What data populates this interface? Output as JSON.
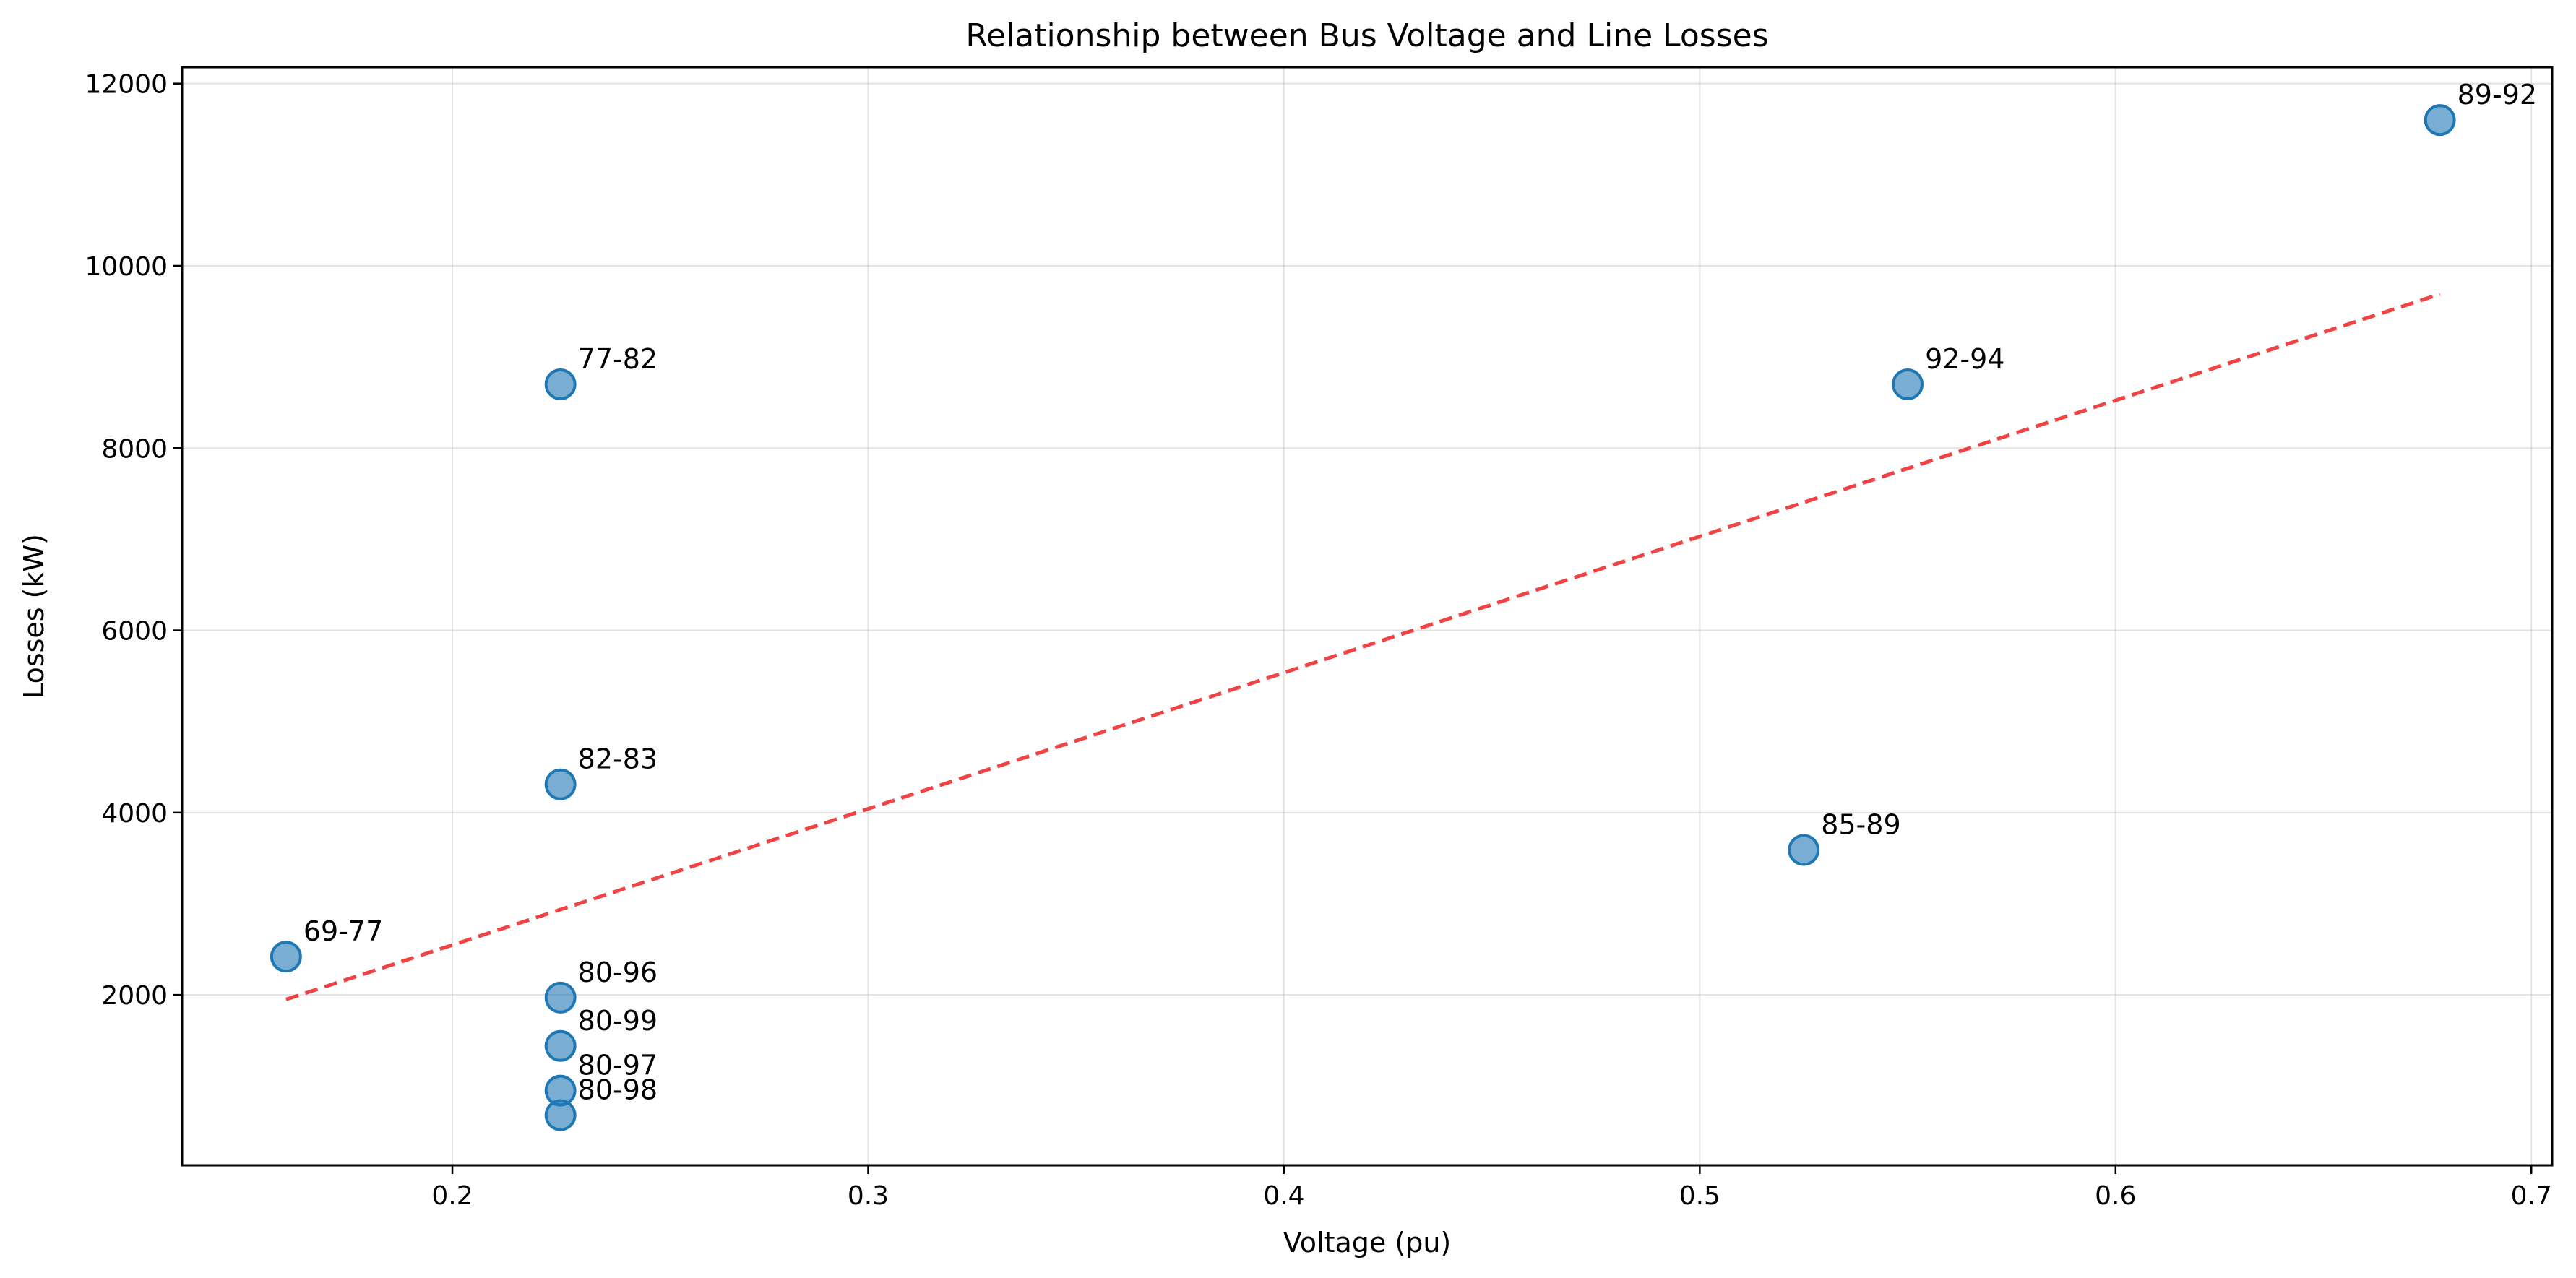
{
  "chart_data": {
    "type": "scatter",
    "title": "Relationship between Bus Voltage and Line Losses",
    "xlabel": "Voltage (pu)",
    "ylabel": "Losses (kW)",
    "xlim": [
      0.135,
      0.705
    ],
    "ylim": [
      130,
      12180
    ],
    "xticks": [
      0.2,
      0.3,
      0.4,
      0.5,
      0.6,
      0.7
    ],
    "yticks": [
      2000,
      4000,
      6000,
      8000,
      10000,
      12000
    ],
    "grid": true,
    "point_color": "#1f77b4",
    "trend_color": "#ee2222",
    "points": [
      {
        "label": "69-77",
        "x": 0.16,
        "y": 2420
      },
      {
        "label": "77-82",
        "x": 0.226,
        "y": 8700
      },
      {
        "label": "82-83",
        "x": 0.226,
        "y": 4310
      },
      {
        "label": "80-96",
        "x": 0.226,
        "y": 1970
      },
      {
        "label": "80-99",
        "x": 0.226,
        "y": 1440
      },
      {
        "label": "80-97",
        "x": 0.226,
        "y": 950
      },
      {
        "label": "80-98",
        "x": 0.226,
        "y": 680
      },
      {
        "label": "85-89",
        "x": 0.525,
        "y": 3590
      },
      {
        "label": "92-94",
        "x": 0.55,
        "y": 8700
      },
      {
        "label": "89-92",
        "x": 0.678,
        "y": 11600
      }
    ],
    "trendline": {
      "x": [
        0.16,
        0.678
      ],
      "y": [
        1950,
        9690
      ]
    }
  }
}
